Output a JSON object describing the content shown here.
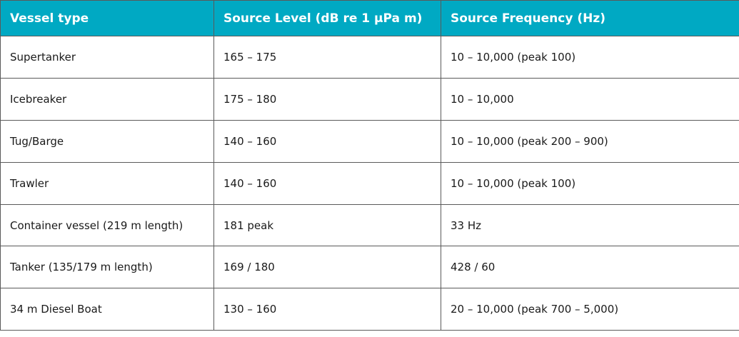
{
  "table": {
    "headers": [
      "Vessel type",
      "Source Level (dB re 1 μPa m)",
      "Source Frequency (Hz)"
    ],
    "rows": [
      [
        "Supertanker",
        "165 – 175",
        "10 – 10,000 (peak 100)"
      ],
      [
        "Icebreaker",
        "175 – 180",
        "10 – 10,000"
      ],
      [
        "Tug/Barge",
        "140 – 160",
        "10 – 10,000 (peak 200 – 900)"
      ],
      [
        "Trawler",
        "140 – 160",
        "10 – 10,000 (peak 100)"
      ],
      [
        "Container vessel (219 m length)",
        "181 peak",
        "33 Hz"
      ],
      [
        "Tanker (135/179 m length)",
        "169 / 180",
        "428 / 60"
      ],
      [
        "34 m Diesel Boat",
        "130 – 160",
        "20 – 10,000 (peak 700 – 5,000)"
      ]
    ]
  }
}
